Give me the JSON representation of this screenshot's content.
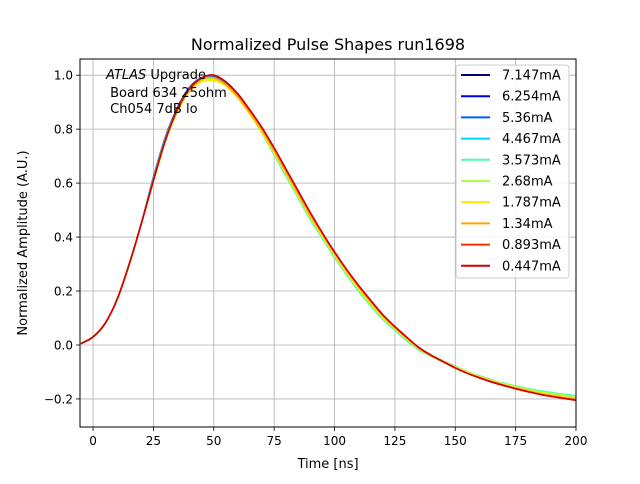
{
  "chart_data": {
    "type": "line",
    "title": "Normalized Pulse Shapes run1698",
    "xlabel": "Time [ns]",
    "ylabel": "Normalized Amplitude (A.U.)",
    "xlim": [
      -5.4,
      200
    ],
    "ylim": [
      -0.304,
      1.06
    ],
    "xticks": [
      0,
      25,
      50,
      75,
      100,
      125,
      150,
      175,
      200
    ],
    "xtick_labels": [
      "0",
      "25",
      "50",
      "75",
      "100",
      "125",
      "150",
      "175",
      "200"
    ],
    "yticks": [
      -0.2,
      0.0,
      0.2,
      0.4,
      0.6,
      0.8,
      1.0
    ],
    "ytick_labels": [
      "−0.2",
      "0.0",
      "0.2",
      "0.4",
      "0.6",
      "0.8",
      "1.0"
    ],
    "grid": true,
    "legend_position": "top-right",
    "annotation": {
      "italic": "ATLAS",
      "line1_rest": " Upgrade",
      "line2": " Board 634 25ohm",
      "line3": " Ch054 7dB lo"
    },
    "x": [
      -5,
      0,
      5,
      10,
      15,
      20,
      25,
      30,
      35,
      40,
      45,
      50,
      55,
      60,
      65,
      70,
      75,
      80,
      85,
      90,
      95,
      100,
      105,
      110,
      115,
      120,
      125,
      130,
      135,
      140,
      145,
      150,
      155,
      160,
      165,
      170,
      175,
      180,
      185,
      190,
      195,
      200
    ],
    "series": [
      {
        "name": "7.147mA",
        "color": "#00007f",
        "values": [
          0.005,
          0.03,
          0.08,
          0.17,
          0.3,
          0.45,
          0.62,
          0.77,
          0.88,
          0.955,
          0.99,
          0.995,
          0.97,
          0.92,
          0.86,
          0.79,
          0.71,
          0.63,
          0.55,
          0.47,
          0.4,
          0.33,
          0.265,
          0.205,
          0.15,
          0.1,
          0.06,
          0.02,
          -0.015,
          -0.04,
          -0.06,
          -0.08,
          -0.1,
          -0.115,
          -0.13,
          -0.145,
          -0.155,
          -0.165,
          -0.175,
          -0.18,
          -0.185,
          -0.19
        ]
      },
      {
        "name": "6.254mA",
        "color": "#0000f0",
        "values": [
          0.005,
          0.03,
          0.08,
          0.17,
          0.3,
          0.45,
          0.62,
          0.77,
          0.88,
          0.955,
          0.99,
          0.995,
          0.97,
          0.92,
          0.86,
          0.79,
          0.71,
          0.63,
          0.55,
          0.47,
          0.4,
          0.33,
          0.265,
          0.205,
          0.15,
          0.1,
          0.06,
          0.02,
          -0.015,
          -0.04,
          -0.06,
          -0.08,
          -0.1,
          -0.115,
          -0.13,
          -0.145,
          -0.155,
          -0.165,
          -0.175,
          -0.18,
          -0.185,
          -0.19
        ]
      },
      {
        "name": "5.36mA",
        "color": "#0060ff",
        "values": [
          0.005,
          0.03,
          0.08,
          0.17,
          0.3,
          0.45,
          0.62,
          0.77,
          0.88,
          0.955,
          0.99,
          0.995,
          0.97,
          0.92,
          0.86,
          0.79,
          0.71,
          0.63,
          0.55,
          0.47,
          0.4,
          0.33,
          0.265,
          0.205,
          0.15,
          0.1,
          0.06,
          0.02,
          -0.015,
          -0.04,
          -0.06,
          -0.08,
          -0.1,
          -0.115,
          -0.13,
          -0.145,
          -0.155,
          -0.165,
          -0.175,
          -0.18,
          -0.185,
          -0.19
        ]
      },
      {
        "name": "4.467mA",
        "color": "#00d4ff",
        "values": [
          0.005,
          0.03,
          0.08,
          0.17,
          0.3,
          0.45,
          0.615,
          0.765,
          0.875,
          0.95,
          0.985,
          0.99,
          0.965,
          0.915,
          0.855,
          0.785,
          0.705,
          0.625,
          0.545,
          0.465,
          0.395,
          0.325,
          0.26,
          0.2,
          0.145,
          0.095,
          0.055,
          0.015,
          -0.018,
          -0.042,
          -0.062,
          -0.082,
          -0.1,
          -0.115,
          -0.13,
          -0.142,
          -0.152,
          -0.162,
          -0.17,
          -0.177,
          -0.183,
          -0.188
        ]
      },
      {
        "name": "3.573mA",
        "color": "#4cffaa",
        "values": [
          0.005,
          0.03,
          0.08,
          0.17,
          0.3,
          0.45,
          0.615,
          0.765,
          0.875,
          0.95,
          0.985,
          0.99,
          0.965,
          0.915,
          0.855,
          0.785,
          0.705,
          0.625,
          0.545,
          0.465,
          0.395,
          0.325,
          0.26,
          0.2,
          0.145,
          0.095,
          0.055,
          0.015,
          -0.018,
          -0.042,
          -0.062,
          -0.082,
          -0.1,
          -0.115,
          -0.13,
          -0.142,
          -0.152,
          -0.162,
          -0.17,
          -0.177,
          -0.183,
          -0.188
        ]
      },
      {
        "name": "2.68mA",
        "color": "#aaff4c",
        "values": [
          0.005,
          0.03,
          0.08,
          0.17,
          0.3,
          0.45,
          0.61,
          0.76,
          0.87,
          0.945,
          0.98,
          0.985,
          0.96,
          0.915,
          0.855,
          0.785,
          0.71,
          0.63,
          0.55,
          0.47,
          0.4,
          0.33,
          0.265,
          0.205,
          0.15,
          0.1,
          0.06,
          0.02,
          -0.015,
          -0.04,
          -0.06,
          -0.08,
          -0.1,
          -0.115,
          -0.13,
          -0.143,
          -0.154,
          -0.164,
          -0.173,
          -0.18,
          -0.186,
          -0.192
        ]
      },
      {
        "name": "1.787mA",
        "color": "#ffe600",
        "values": [
          0.005,
          0.03,
          0.08,
          0.17,
          0.3,
          0.45,
          0.605,
          0.755,
          0.865,
          0.94,
          0.975,
          0.98,
          0.96,
          0.915,
          0.855,
          0.79,
          0.715,
          0.635,
          0.555,
          0.475,
          0.405,
          0.335,
          0.27,
          0.21,
          0.155,
          0.105,
          0.062,
          0.022,
          -0.013,
          -0.04,
          -0.062,
          -0.082,
          -0.102,
          -0.118,
          -0.133,
          -0.147,
          -0.158,
          -0.168,
          -0.177,
          -0.185,
          -0.192,
          -0.198
        ]
      },
      {
        "name": "1.34mA",
        "color": "#ffa300",
        "values": [
          0.005,
          0.03,
          0.08,
          0.17,
          0.3,
          0.45,
          0.61,
          0.76,
          0.87,
          0.945,
          0.985,
          0.99,
          0.965,
          0.92,
          0.86,
          0.795,
          0.72,
          0.64,
          0.56,
          0.48,
          0.41,
          0.34,
          0.275,
          0.215,
          0.16,
          0.108,
          0.065,
          0.025,
          -0.012,
          -0.04,
          -0.063,
          -0.085,
          -0.105,
          -0.12,
          -0.135,
          -0.148,
          -0.16,
          -0.17,
          -0.18,
          -0.188,
          -0.195,
          -0.2
        ]
      },
      {
        "name": "0.893mA",
        "color": "#ff3000",
        "values": [
          0.005,
          0.03,
          0.08,
          0.17,
          0.3,
          0.45,
          0.61,
          0.76,
          0.875,
          0.95,
          0.99,
          1.0,
          0.975,
          0.93,
          0.87,
          0.805,
          0.73,
          0.65,
          0.57,
          0.49,
          0.415,
          0.345,
          0.28,
          0.22,
          0.165,
          0.112,
          0.068,
          0.028,
          -0.01,
          -0.038,
          -0.062,
          -0.085,
          -0.105,
          -0.122,
          -0.137,
          -0.15,
          -0.162,
          -0.173,
          -0.183,
          -0.191,
          -0.198,
          -0.204
        ]
      },
      {
        "name": "0.447mA",
        "color": "#d40000",
        "values": [
          0.005,
          0.03,
          0.08,
          0.17,
          0.3,
          0.45,
          0.61,
          0.76,
          0.875,
          0.95,
          0.99,
          1.0,
          0.975,
          0.93,
          0.87,
          0.805,
          0.73,
          0.65,
          0.57,
          0.49,
          0.415,
          0.345,
          0.28,
          0.22,
          0.165,
          0.112,
          0.068,
          0.028,
          -0.01,
          -0.038,
          -0.062,
          -0.085,
          -0.105,
          -0.122,
          -0.137,
          -0.15,
          -0.162,
          -0.173,
          -0.183,
          -0.191,
          -0.198,
          -0.205
        ]
      }
    ]
  }
}
